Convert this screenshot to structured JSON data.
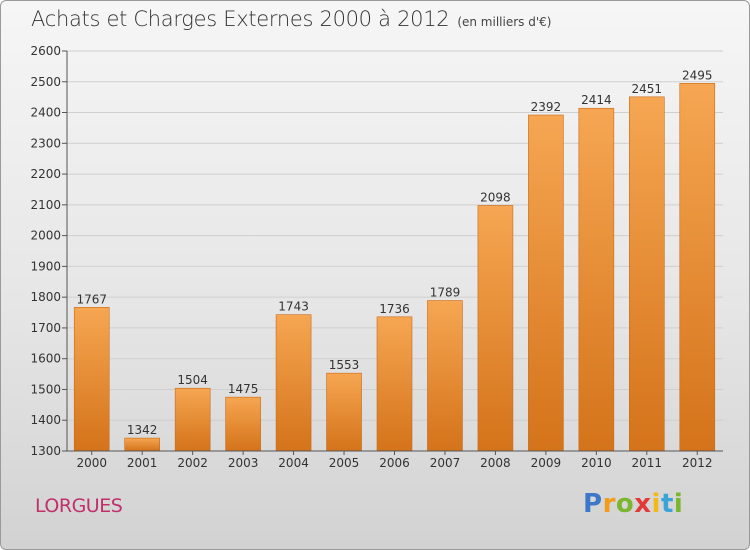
{
  "header": {
    "title": "Achats et Charges Externes 2000 à 2012",
    "unit": "(en milliers d'€)"
  },
  "footer": {
    "city": "LORGUES",
    "logo": {
      "letters": [
        "P",
        "r",
        "o",
        "x",
        "i",
        "t",
        "i"
      ],
      "colors": [
        "#3d78c8",
        "#f39b1a",
        "#7cb52f",
        "#e23b37",
        "#f3b81a",
        "#3aa3d8",
        "#7cb52f"
      ]
    }
  },
  "chart_data": {
    "type": "bar",
    "title": "Achats et Charges Externes 2000 à 2012",
    "xlabel": "",
    "ylabel": "",
    "categories": [
      "2000",
      "2001",
      "2002",
      "2003",
      "2004",
      "2005",
      "2006",
      "2007",
      "2008",
      "2009",
      "2010",
      "2011",
      "2012"
    ],
    "values": [
      1767,
      1342,
      1504,
      1475,
      1743,
      1553,
      1736,
      1789,
      2098,
      2392,
      2414,
      2451,
      2495
    ],
    "data_labels": [
      "1767",
      "1342",
      "1504",
      "1475",
      "1743",
      "1553",
      "1736",
      "1789",
      "2098",
      "2392",
      "2414",
      "2451",
      "2495"
    ],
    "ylim": [
      1300,
      2600
    ],
    "yticks": [
      1300,
      1400,
      1500,
      1600,
      1700,
      1800,
      1900,
      2000,
      2100,
      2200,
      2300,
      2400,
      2500,
      2600
    ],
    "ytick_labels": [
      "1300",
      "1400",
      "1500",
      "1600",
      "1700",
      "1800",
      "1900",
      "2000",
      "2100",
      "2200",
      "2300",
      "2400",
      "2500",
      "2600"
    ],
    "grid": "horizontal",
    "colors": {
      "bar_top": "#f6a652",
      "bar_bottom": "#d4731a",
      "bar_edge": "#c96a18",
      "grid": "#cfcfcf",
      "axis": "#555555"
    }
  }
}
